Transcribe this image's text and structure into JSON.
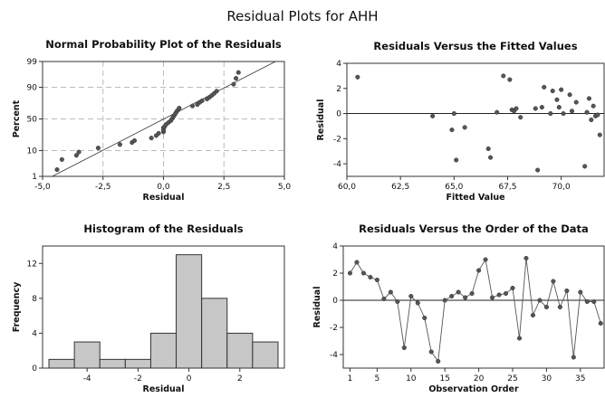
{
  "figure_title": "Residual Plots for AHH",
  "chart_data": [
    {
      "type": "scatter",
      "title": "Normal Probability Plot of the Residuals",
      "xlabel": "Residual",
      "ylabel": "Percent",
      "xlim": [
        -5.0,
        5.0
      ],
      "ylim_percent": [
        1,
        99
      ],
      "y_scale": "normal-probability",
      "xticks": [
        "-5,0",
        "-2,5",
        "0,0",
        "2,5",
        "5,0"
      ],
      "yticks": [
        "1",
        "10",
        "50",
        "90",
        "99"
      ],
      "grid": true,
      "fit_line": {
        "x": [
          -4.6,
          5.0
        ],
        "percent": [
          1.0,
          99.4
        ]
      },
      "x": [
        -4.4,
        -4.2,
        -3.6,
        -3.5,
        -2.7,
        -1.8,
        -1.3,
        -1.2,
        -0.5,
        -0.3,
        -0.2,
        0.0,
        0.0,
        0.0,
        0.05,
        0.1,
        0.2,
        0.3,
        0.35,
        0.4,
        0.45,
        0.5,
        0.55,
        0.6,
        0.65,
        1.2,
        1.4,
        1.5,
        1.6,
        1.8,
        1.9,
        2.0,
        2.1,
        2.2,
        2.9,
        3.0,
        3.1
      ],
      "y_percent": [
        2,
        5,
        7,
        9,
        12,
        15,
        17,
        19,
        22,
        25,
        28,
        30,
        33,
        36,
        38,
        41,
        44,
        47,
        50,
        53,
        56,
        59,
        62,
        64,
        67,
        70,
        72,
        75,
        77,
        79,
        81,
        83,
        85,
        87,
        92,
        95,
        97
      ]
    },
    {
      "type": "scatter",
      "title": "Residuals Versus the Fitted Values",
      "xlabel": "Fitted Value",
      "ylabel": "Residual",
      "xlim": [
        60.0,
        72.0
      ],
      "ylim": [
        -5,
        4
      ],
      "xticks": [
        "60,0",
        "62,5",
        "65,0",
        "67,5",
        "70,0"
      ],
      "yticks": [
        "-4",
        "-2",
        "0",
        "2",
        "4"
      ],
      "reference_line_y": 0,
      "x": [
        60.5,
        64.0,
        64.9,
        65.0,
        65.1,
        65.5,
        66.6,
        66.7,
        67.0,
        67.3,
        67.6,
        67.7,
        67.8,
        67.9,
        68.1,
        68.8,
        68.9,
        69.1,
        69.2,
        69.5,
        69.6,
        69.8,
        69.9,
        70.0,
        70.1,
        70.4,
        70.5,
        70.7,
        71.1,
        71.2,
        71.3,
        71.4,
        71.5,
        71.6,
        71.7,
        71.8
      ],
      "y": [
        2.9,
        -0.2,
        -1.3,
        0.0,
        -3.7,
        -1.1,
        -2.8,
        -3.5,
        0.1,
        3.0,
        2.7,
        0.3,
        0.2,
        0.4,
        -0.3,
        0.4,
        -4.5,
        0.5,
        2.1,
        0.0,
        1.8,
        1.1,
        0.5,
        1.9,
        0.0,
        1.5,
        0.2,
        0.9,
        -4.2,
        0.1,
        1.2,
        -0.5,
        0.6,
        -0.2,
        -0.1,
        -1.7
      ]
    },
    {
      "type": "bar",
      "title": "Histogram of the Residuals",
      "xlabel": "Residual",
      "ylabel": "Frequency",
      "xlim": [
        -5.75,
        3.75
      ],
      "ylim": [
        0,
        14
      ],
      "xticks": [
        "-4",
        "-2",
        "0",
        "2"
      ],
      "yticks": [
        "0",
        "4",
        "8",
        "12"
      ],
      "bin_centers": [
        -5,
        -4,
        -3,
        -2,
        -1,
        0,
        1,
        2,
        3
      ],
      "values": [
        1,
        3,
        1,
        1,
        4,
        13,
        8,
        4,
        3
      ]
    },
    {
      "type": "line",
      "title": "Residuals Versus the Order of the Data",
      "xlabel": "Observation Order",
      "ylabel": "Residual",
      "xlim": [
        0,
        38.5
      ],
      "ylim": [
        -5,
        4
      ],
      "xticks": [
        "1",
        "5",
        "10",
        "15",
        "20",
        "25",
        "30",
        "35"
      ],
      "yticks": [
        "-4",
        "-2",
        "0",
        "2",
        "4"
      ],
      "reference_line_y": 0,
      "x": [
        1,
        2,
        3,
        4,
        5,
        6,
        7,
        8,
        9,
        10,
        11,
        12,
        13,
        14,
        15,
        16,
        17,
        18,
        19,
        20,
        21,
        22,
        23,
        24,
        25,
        26,
        27,
        28,
        29,
        30,
        31,
        32,
        33,
        34,
        35,
        36,
        37,
        38
      ],
      "y": [
        2.0,
        2.8,
        2.0,
        1.7,
        1.5,
        0.1,
        0.6,
        -0.1,
        -3.5,
        0.3,
        -0.2,
        -1.3,
        -3.8,
        -4.5,
        0.0,
        0.3,
        0.6,
        0.2,
        0.5,
        2.2,
        3.0,
        0.2,
        0.4,
        0.5,
        0.9,
        -2.8,
        3.1,
        -1.1,
        0.0,
        -0.5,
        1.4,
        -0.5,
        0.7,
        -4.2,
        0.6,
        -0.1,
        -0.1,
        -1.7
      ]
    }
  ]
}
